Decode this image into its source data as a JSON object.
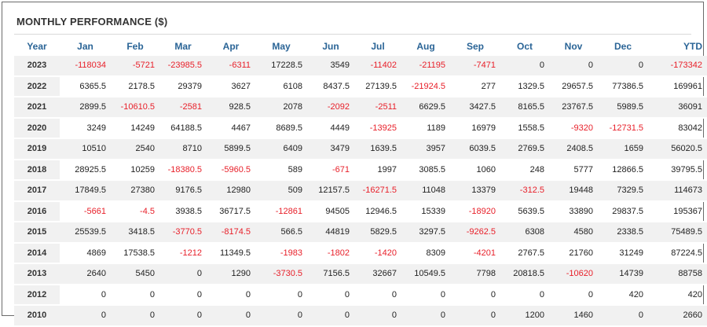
{
  "title": "MONTHLY PERFORMANCE ($)",
  "columns": [
    "Year",
    "Jan",
    "Feb",
    "Mar",
    "Apr",
    "May",
    "Jun",
    "Jul",
    "Aug",
    "Sep",
    "Oct",
    "Nov",
    "Dec",
    "YTD"
  ],
  "rows": [
    [
      "2023",
      "-118034",
      "-5721",
      "-23985.5",
      "-6311",
      "17228.5",
      "3549",
      "-11402",
      "-21195",
      "-7471",
      "0",
      "0",
      "0",
      "-173342"
    ],
    [
      "2022",
      "6365.5",
      "2178.5",
      "29379",
      "3627",
      "6108",
      "8437.5",
      "27139.5",
      "-21924.5",
      "277",
      "1329.5",
      "29657.5",
      "77386.5",
      "169961"
    ],
    [
      "2021",
      "2899.5",
      "-10610.5",
      "-2581",
      "928.5",
      "2078",
      "-2092",
      "-2511",
      "6629.5",
      "3427.5",
      "8165.5",
      "23767.5",
      "5989.5",
      "36091"
    ],
    [
      "2020",
      "3249",
      "14249",
      "64188.5",
      "4467",
      "8689.5",
      "4449",
      "-13925",
      "1189",
      "16979",
      "1558.5",
      "-9320",
      "-12731.5",
      "83042"
    ],
    [
      "2019",
      "10510",
      "2540",
      "8710",
      "5899.5",
      "6409",
      "3479",
      "1639.5",
      "3957",
      "6039.5",
      "2769.5",
      "2408.5",
      "1659",
      "56020.5"
    ],
    [
      "2018",
      "28925.5",
      "10259",
      "-18380.5",
      "-5960.5",
      "589",
      "-671",
      "1997",
      "3085.5",
      "1060",
      "248",
      "5777",
      "12866.5",
      "39795.5"
    ],
    [
      "2017",
      "17849.5",
      "27380",
      "9176.5",
      "12980",
      "509",
      "12157.5",
      "-16271.5",
      "11048",
      "13379",
      "-312.5",
      "19448",
      "7329.5",
      "114673"
    ],
    [
      "2016",
      "-5661",
      "-4.5",
      "3938.5",
      "36717.5",
      "-12861",
      "94505",
      "12946.5",
      "15339",
      "-18920",
      "5639.5",
      "33890",
      "29837.5",
      "195367"
    ],
    [
      "2015",
      "25539.5",
      "3418.5",
      "-3770.5",
      "-8174.5",
      "566.5",
      "44819",
      "5829.5",
      "3297.5",
      "-9262.5",
      "6308",
      "4580",
      "2338.5",
      "75489.5"
    ],
    [
      "2014",
      "4869",
      "17538.5",
      "-1212",
      "11349.5",
      "-1983",
      "-1802",
      "-1420",
      "8309",
      "-4201",
      "2767.5",
      "21760",
      "31249",
      "87224.5"
    ],
    [
      "2013",
      "2640",
      "5450",
      "0",
      "1290",
      "-3730.5",
      "7156.5",
      "32667",
      "10549.5",
      "7798",
      "20818.5",
      "-10620",
      "14739",
      "88758"
    ],
    [
      "2012",
      "0",
      "0",
      "0",
      "0",
      "0",
      "0",
      "0",
      "0",
      "0",
      "0",
      "0",
      "420",
      "420"
    ],
    [
      "2010",
      "0",
      "0",
      "0",
      "0",
      "0",
      "0",
      "0",
      "0",
      "0",
      "1200",
      "1460",
      "0",
      "2660"
    ]
  ],
  "colors": {
    "header_text": "#2a6496",
    "negative": "#e8202a",
    "stripe": "#f1f1f1"
  }
}
